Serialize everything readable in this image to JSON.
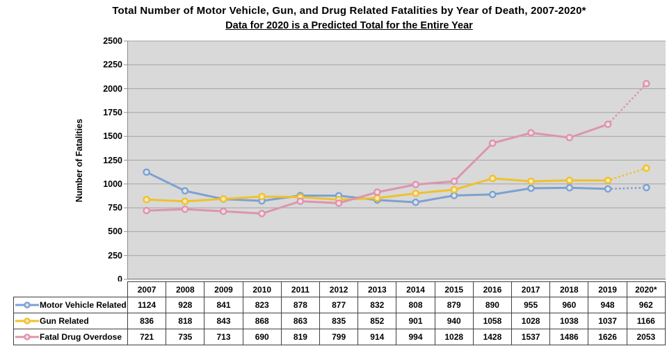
{
  "chart_data": {
    "type": "line",
    "title": "Total Number of Motor Vehicle, Gun, and Drug Related Fatalities by Year of Death, 2007-2020*",
    "subtitle": "Data for 2020 is a Predicted Total for the Entire Year",
    "ylabel": "Number of Fatalities",
    "ylim": [
      0,
      2500
    ],
    "ytick_step": 250,
    "grid": true,
    "legend_position": "table-left",
    "last_segment_style": "dotted",
    "plot_bg": "#d9d9d9",
    "grid_color": "#a3a3a3",
    "axis_color": "#8c8c8c",
    "table_border_color": "#3f3f3f",
    "categories": [
      "2007",
      "2008",
      "2009",
      "2010",
      "2011",
      "2012",
      "2013",
      "2014",
      "2015",
      "2016",
      "2017",
      "2018",
      "2019",
      "2020*"
    ],
    "series": [
      {
        "name": "Motor Vehicle Related",
        "color": "#7da1d1",
        "marker_fill": "#d9e3f1",
        "values": [
          1124,
          928,
          841,
          823,
          878,
          877,
          832,
          808,
          879,
          890,
          955,
          960,
          948,
          962
        ]
      },
      {
        "name": "Gun Related",
        "color": "#efc12d",
        "marker_fill": "#fae9b5",
        "values": [
          836,
          818,
          843,
          868,
          863,
          835,
          852,
          901,
          940,
          1058,
          1028,
          1038,
          1037,
          1166
        ]
      },
      {
        "name": "Fatal Drug Overdose",
        "color": "#dd94af",
        "marker_fill": "#f4dce5",
        "values": [
          721,
          735,
          713,
          690,
          819,
          799,
          914,
          994,
          1028,
          1428,
          1537,
          1486,
          1626,
          2053
        ]
      }
    ]
  }
}
